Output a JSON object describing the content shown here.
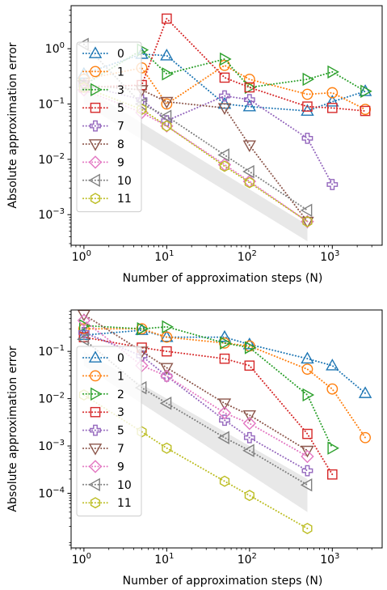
{
  "chart_data": [
    {
      "type": "line",
      "xscale": "log",
      "yscale": "log",
      "xlim": [
        0.7,
        4000
      ],
      "ylim": [
        0.00028,
        6
      ],
      "xlabel": "Number of approximation steps (N)",
      "ylabel": "Absolute approximation error",
      "xticks": [
        {
          "v": 1,
          "label": "10",
          "exp": "0"
        },
        {
          "v": 10,
          "label": "10",
          "exp": "1"
        },
        {
          "v": 100,
          "label": "10",
          "exp": "2"
        },
        {
          "v": 1000,
          "label": "10",
          "exp": "3"
        }
      ],
      "yticks": [
        {
          "v": 0.001,
          "label": "10",
          "exp": "−3"
        },
        {
          "v": 0.01,
          "label": "10",
          "exp": "−2"
        },
        {
          "v": 0.1,
          "label": "10",
          "exp": "−1"
        },
        {
          "v": 1,
          "label": "10",
          "exp": "0"
        }
      ],
      "legend": "upper-left",
      "band": {
        "x": [
          1,
          500
        ],
        "upper": [
          0.2,
          0.00065
        ],
        "lower": [
          0.1,
          0.00033
        ],
        "color": "#cccccc"
      },
      "series": [
        {
          "name": "0",
          "color": "#1f77b4",
          "marker": "triangle-up",
          "x": [
            1,
            5,
            10,
            50,
            100,
            500,
            1000,
            2500
          ],
          "y": [
            0.35,
            0.8,
            0.75,
            0.1,
            0.09,
            0.075,
            0.11,
            0.17
          ]
        },
        {
          "name": "1",
          "color": "#ff7f0e",
          "marker": "circle",
          "x": [
            1,
            5,
            10,
            50,
            100,
            500,
            1000,
            2500
          ],
          "y": [
            0.28,
            0.45,
            0.1,
            0.5,
            0.28,
            0.15,
            0.16,
            0.08
          ]
        },
        {
          "name": "3",
          "color": "#2ca02c",
          "marker": "triangle-right",
          "x": [
            1,
            5,
            10,
            50,
            100,
            500,
            1000,
            2500
          ],
          "y": [
            0.22,
            0.95,
            0.35,
            0.65,
            0.2,
            0.28,
            0.38,
            0.17
          ]
        },
        {
          "name": "5",
          "color": "#d62728",
          "marker": "square",
          "x": [
            1,
            5,
            10,
            50,
            100,
            500,
            1000,
            2500
          ],
          "y": [
            0.2,
            0.22,
            3.5,
            0.3,
            0.2,
            0.09,
            0.085,
            0.075
          ]
        },
        {
          "name": "7",
          "color": "#9467bd",
          "marker": "plus",
          "x": [
            1,
            5,
            10,
            50,
            100,
            500,
            1000
          ],
          "y": [
            0.22,
            0.12,
            0.05,
            0.14,
            0.12,
            0.024,
            0.0035
          ]
        },
        {
          "name": "8",
          "color": "#8c564b",
          "marker": "triangle-down",
          "x": [
            1,
            5,
            10,
            50,
            100,
            500
          ],
          "y": [
            0.22,
            0.18,
            0.11,
            0.085,
            0.018,
            0.00075
          ]
        },
        {
          "name": "9",
          "color": "#e377c2",
          "marker": "diamond",
          "x": [
            1,
            5,
            10,
            50,
            100,
            500
          ],
          "y": [
            0.18,
            0.07,
            0.04,
            0.008,
            0.004,
            0.00075
          ]
        },
        {
          "name": "10",
          "color": "#7f7f7f",
          "marker": "triangle-left",
          "x": [
            1,
            5,
            10,
            50,
            100,
            500
          ],
          "y": [
            1.2,
            0.1,
            0.06,
            0.012,
            0.006,
            0.0012
          ]
        },
        {
          "name": "11",
          "color": "#bcbd22",
          "marker": "hexagon",
          "x": [
            1,
            5,
            10,
            50,
            100,
            500
          ],
          "y": [
            0.2,
            0.08,
            0.04,
            0.0075,
            0.0038,
            0.00075
          ]
        }
      ]
    },
    {
      "type": "line",
      "xscale": "log",
      "yscale": "log",
      "xlim": [
        0.7,
        4000
      ],
      "ylim": [
        7e-06,
        0.75
      ],
      "xlabel": "Number of approximation steps (N)",
      "ylabel": "Absolute approximation error",
      "xticks": [
        {
          "v": 1,
          "label": "10",
          "exp": "0"
        },
        {
          "v": 10,
          "label": "10",
          "exp": "1"
        },
        {
          "v": 100,
          "label": "10",
          "exp": "2"
        },
        {
          "v": 1000,
          "label": "10",
          "exp": "3"
        }
      ],
      "yticks": [
        {
          "v": 0.0001,
          "label": "10",
          "exp": "−4"
        },
        {
          "v": 0.001,
          "label": "10",
          "exp": "−3"
        },
        {
          "v": 0.01,
          "label": "10",
          "exp": "−2"
        },
        {
          "v": 0.1,
          "label": "10",
          "exp": "−1"
        }
      ],
      "legend": "upper-left",
      "band": {
        "x": [
          1,
          500
        ],
        "upper": [
          0.1,
          0.0002
        ],
        "lower": [
          0.05,
          4e-05
        ],
        "color": "#cccccc"
      },
      "series": [
        {
          "name": "0",
          "color": "#1f77b4",
          "marker": "triangle-up",
          "x": [
            1,
            5,
            10,
            50,
            100,
            500,
            1000,
            2500
          ],
          "y": [
            0.22,
            0.28,
            0.2,
            0.2,
            0.14,
            0.07,
            0.05,
            0.013
          ]
        },
        {
          "name": "1",
          "color": "#ff7f0e",
          "marker": "circle",
          "x": [
            1,
            5,
            10,
            50,
            100,
            500,
            1000,
            2500
          ],
          "y": [
            0.3,
            0.3,
            0.2,
            0.15,
            0.13,
            0.042,
            0.016,
            0.0015
          ]
        },
        {
          "name": "2",
          "color": "#2ca02c",
          "marker": "triangle-right",
          "x": [
            1,
            5,
            10,
            50,
            100,
            500,
            1000
          ],
          "y": [
            0.35,
            0.3,
            0.33,
            0.15,
            0.12,
            0.012,
            0.0009
          ]
        },
        {
          "name": "3",
          "color": "#d62728",
          "marker": "square",
          "x": [
            1,
            5,
            10,
            50,
            100,
            500,
            1000
          ],
          "y": [
            0.2,
            0.12,
            0.1,
            0.07,
            0.05,
            0.0018,
            0.00025
          ]
        },
        {
          "name": "5",
          "color": "#9467bd",
          "marker": "plus",
          "x": [
            1,
            5,
            10,
            50,
            100,
            500
          ],
          "y": [
            0.25,
            0.08,
            0.03,
            0.0035,
            0.0015,
            0.0003
          ]
        },
        {
          "name": "7",
          "color": "#8c564b",
          "marker": "triangle-down",
          "x": [
            1,
            5,
            10,
            50,
            100,
            500
          ],
          "y": [
            0.6,
            0.1,
            0.045,
            0.008,
            0.0045,
            0.0008
          ]
        },
        {
          "name": "9",
          "color": "#e377c2",
          "marker": "diamond",
          "x": [
            1,
            5,
            10,
            50,
            100,
            500
          ],
          "y": [
            0.45,
            0.05,
            0.03,
            0.005,
            0.003,
            0.0006
          ]
        },
        {
          "name": "10",
          "color": "#7f7f7f",
          "marker": "triangle-left",
          "x": [
            1,
            5,
            10,
            50,
            100,
            500
          ],
          "y": [
            0.18,
            0.017,
            0.008,
            0.0015,
            0.0008,
            0.00015
          ]
        },
        {
          "name": "11",
          "color": "#bcbd22",
          "marker": "hexagon",
          "x": [
            1,
            5,
            10,
            50,
            100,
            500
          ],
          "y": [
            0.012,
            0.002,
            0.0009,
            0.00018,
            9e-05,
            1.8e-05
          ]
        }
      ]
    }
  ]
}
